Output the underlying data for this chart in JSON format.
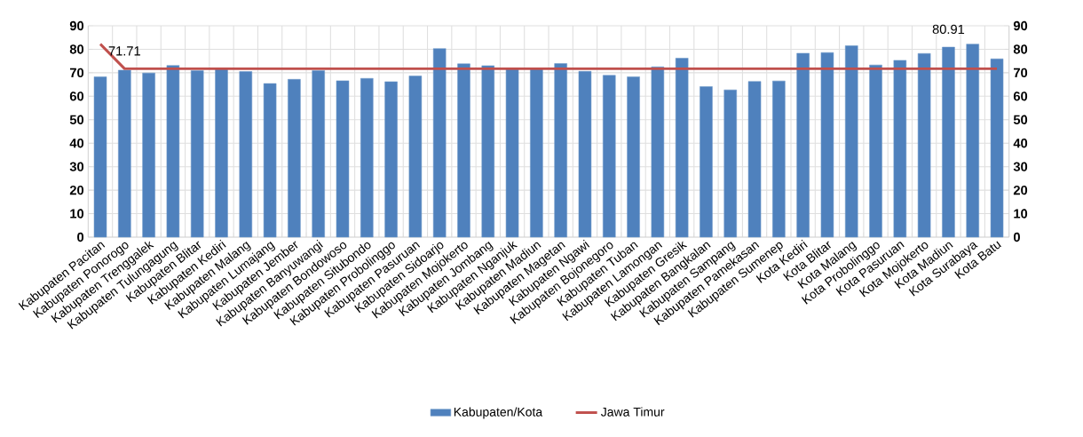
{
  "chart_data": {
    "type": "bar",
    "categories": [
      "Kabupaten Pacitan",
      "Kabupaten Ponorogo",
      "Kabupaten Trenggalek",
      "Kabupaten Tulungagung",
      "Kabupaten Blitar",
      "Kabupaten Kediri",
      "Kabupaten Malang",
      "Kabupaten Lumajang",
      "Kabupaten Jember",
      "Kabupaten Banyuwangi",
      "Kabupaten Bondowoso",
      "Kabupaten Situbondo",
      "Kabupaten Probolinggo",
      "Kabupaten Pasuruan",
      "Kabupaten Sidoarjo",
      "Kabupaten Mojokerto",
      "Kabupaten Jombang",
      "Kabupaten Nganjuk",
      "Kabupaten Madiun",
      "Kabupaten Magetan",
      "Kabupaten Ngawi",
      "Kabupaten Bojonegoro",
      "Kabupaten Tuban",
      "Kabupaten Lamongan",
      "Kabupaten Gresik",
      "Kabupaten Bangkalan",
      "Kabupaten Sampang",
      "Kabupaten Pamekasan",
      "Kabupaten Sumenep",
      "Kota Kediri",
      "Kota Blitar",
      "Kota Malang",
      "Kota Probolinggo",
      "Kota Pasuruan",
      "Kota Mojokerto",
      "Kota Madiun",
      "Kota Surabaya",
      "Kota Batu"
    ],
    "series": [
      {
        "name": "Kabupaten/Kota",
        "color": "#4f81bd",
        "values": [
          68.3,
          71.1,
          69.9,
          73.1,
          70.9,
          71.9,
          70.5,
          65.4,
          67.2,
          70.9,
          66.6,
          67.6,
          66.2,
          68.6,
          80.3,
          73.8,
          73.0,
          71.8,
          71.9,
          73.9,
          70.6,
          68.9,
          68.3,
          72.5,
          76.2,
          64.1,
          62.7,
          66.3,
          66.5,
          78.3,
          78.6,
          81.5,
          73.3,
          75.3,
          78.2,
          80.91,
          82.2,
          75.9
        ]
      },
      {
        "name": "Jawa Timur",
        "type": "line",
        "color": "#c0504d",
        "values": [
          82.2,
          71.71,
          71.71,
          71.71,
          71.71,
          71.71,
          71.71,
          71.71,
          71.71,
          71.71,
          71.71,
          71.71,
          71.71,
          71.71,
          71.71,
          71.71,
          71.71,
          71.71,
          71.71,
          71.71,
          71.71,
          71.71,
          71.71,
          71.71,
          71.71,
          71.71,
          71.71,
          71.71,
          71.71,
          71.71,
          71.71,
          71.71,
          71.71,
          71.71,
          71.71,
          71.71,
          71.71,
          71.71
        ]
      }
    ],
    "ylim": [
      0,
      90
    ],
    "yticks": [
      0,
      10,
      20,
      30,
      40,
      50,
      60,
      70,
      80,
      90
    ],
    "y2lim": [
      0,
      90
    ],
    "y2ticks": [
      0,
      10,
      20,
      30,
      40,
      50,
      60,
      70,
      80,
      90
    ],
    "annotations": [
      {
        "text": "71.71",
        "x": "Kabupaten Ponorogo",
        "y": 71.71
      },
      {
        "text": "80.91",
        "x": "Kota Madiun",
        "y": 80.91
      }
    ],
    "grid": true,
    "legend": "bottom",
    "marker": "none",
    "line_style": "solid"
  }
}
